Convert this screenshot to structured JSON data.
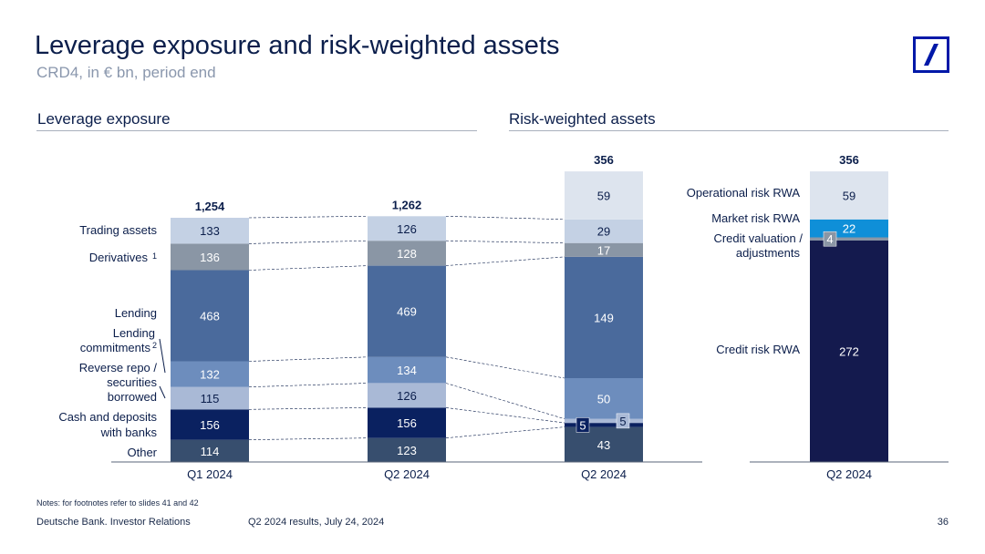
{
  "header": {
    "title": "Leverage exposure and risk-weighted assets",
    "subtitle": "CRD4, in € bn, period end"
  },
  "sections": {
    "left": "Leverage exposure",
    "right": "Risk-weighted assets"
  },
  "colors": {
    "dark_navy": "#0a2160",
    "deep_navy": "#141a4e",
    "slate": "#374e6e",
    "light_blue": "#a9b9d6",
    "mid_blue": "#6d8dbd",
    "steel_blue": "#4a6a9c",
    "grey": "#8a96a5",
    "pale_blue": "#c4d1e4",
    "very_pale": "#dde4ee",
    "cyan": "#0f8fd8",
    "brand_blue": "#0018a8"
  },
  "chart_data": [
    {
      "type": "bar",
      "stacked": true,
      "title": "Leverage exposure",
      "categories": [
        "Q1 2024",
        "Q2 2024"
      ],
      "series": [
        {
          "name": "Other",
          "values": [
            114,
            123
          ]
        },
        {
          "name": "Cash and deposits with banks",
          "values": [
            156,
            156
          ]
        },
        {
          "name": "Reverse repo / securities borrowed",
          "values": [
            115,
            126
          ]
        },
        {
          "name": "Lending commitments2",
          "values": [
            132,
            134
          ]
        },
        {
          "name": "Lending",
          "values": [
            468,
            469
          ]
        },
        {
          "name": "Derivatives1",
          "values": [
            136,
            128
          ]
        },
        {
          "name": "Trading assets",
          "values": [
            133,
            126
          ]
        }
      ],
      "totals": [
        "1,254",
        "1,262"
      ]
    },
    {
      "type": "bar",
      "stacked": true,
      "categories": [
        "Q2 2024"
      ],
      "series": [
        {
          "name": "Other",
          "values": [
            43
          ]
        },
        {
          "name": "Cash and deposits with banks",
          "values": [
            5
          ]
        },
        {
          "name": "Reverse repo / securities borrowed",
          "values": [
            5
          ]
        },
        {
          "name": "Lending commitments2",
          "values": [
            50
          ]
        },
        {
          "name": "Lending",
          "values": [
            149
          ]
        },
        {
          "name": "Derivatives1",
          "values": [
            17
          ]
        },
        {
          "name": "Trading assets",
          "values": [
            29
          ]
        },
        {
          "name": "Operational risk RWA",
          "values": [
            59
          ]
        }
      ],
      "totals": [
        "356"
      ]
    },
    {
      "type": "bar",
      "stacked": true,
      "title": "Risk-weighted assets",
      "categories": [
        "Q2 2024"
      ],
      "series": [
        {
          "name": "Credit risk RWA",
          "values": [
            272
          ]
        },
        {
          "name": "Credit valuation / adjustments",
          "values": [
            4
          ]
        },
        {
          "name": "Market risk RWA",
          "values": [
            22
          ]
        },
        {
          "name": "Operational risk RWA",
          "values": [
            59
          ]
        }
      ],
      "totals": [
        "356"
      ]
    }
  ],
  "legend_left": {
    "trading_assets": "Trading assets",
    "derivatives": "Derivatives",
    "derivatives_sup": "1",
    "lending": "Lending",
    "lending_commitments_1": "Lending",
    "lending_commitments_2": "commitments",
    "lending_commitments_sup": "2",
    "reverse_repo_1": "Reverse repo /",
    "reverse_repo_2": "securities",
    "reverse_repo_3": "borrowed",
    "cash_1": "Cash and deposits",
    "cash_2": "with banks",
    "other": "Other"
  },
  "legend_right": {
    "operational": "Operational risk RWA",
    "market": "Market risk RWA",
    "cva_1": "Credit valuation /",
    "cva_2": "adjustments",
    "credit": "Credit risk RWA"
  },
  "footer": {
    "notes": "Notes: for footnotes refer to slides 41 and 42",
    "company": "Deutsche Bank. Investor Relations",
    "event": "Q2 2024 results, July 24, 2024",
    "page": "36"
  }
}
